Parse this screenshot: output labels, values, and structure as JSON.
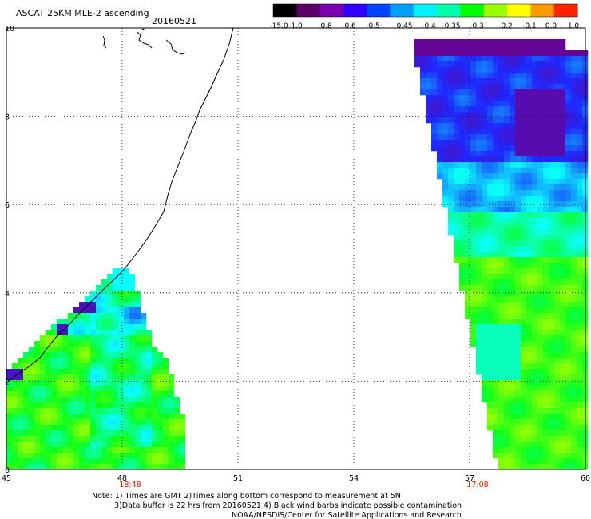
{
  "header": {
    "title": "ASCAT 25KM MLE-2 ascending",
    "date": "20160521"
  },
  "colorbar": {
    "labels": [
      "-15.0",
      "-1.0",
      "-0.8",
      "-0.6",
      "-0.5",
      "-0.45",
      "-0.4",
      "-0.35",
      "-0.3",
      "-0.2",
      "-0.1",
      "0.0",
      "1.0"
    ],
    "colors": [
      "#000000",
      "#5a0066",
      "#7a00b0",
      "#3300ff",
      "#0044ff",
      "#00a0ff",
      "#00f0ff",
      "#00ffaa",
      "#00ff00",
      "#99ff00",
      "#ffff00",
      "#ff9900",
      "#ff2200"
    ]
  },
  "map": {
    "x_ticks": [
      "45",
      "48",
      "51",
      "54",
      "57",
      "60"
    ],
    "y_ticks": [
      "0",
      "2",
      "4",
      "6",
      "8",
      "10"
    ],
    "lon_range": [
      45,
      60
    ],
    "lat_range": [
      0,
      10
    ],
    "grid": true,
    "time_labels": [
      {
        "text": "18:48",
        "lon": 48,
        "color": "#cc2200"
      },
      {
        "text": "17:08",
        "lon": 57,
        "color": "#cc2200"
      }
    ]
  },
  "notes": {
    "line1": "Note: 1) Times are GMT 2)Times along bottom correspond to measurement at 5N",
    "line2": "3)Data buffer is 22 hrs from 20160521 4) Black wind barbs indicate possible contamination",
    "line3": "NOAA/NESDIS/Center for Satellite Applications and Research"
  }
}
